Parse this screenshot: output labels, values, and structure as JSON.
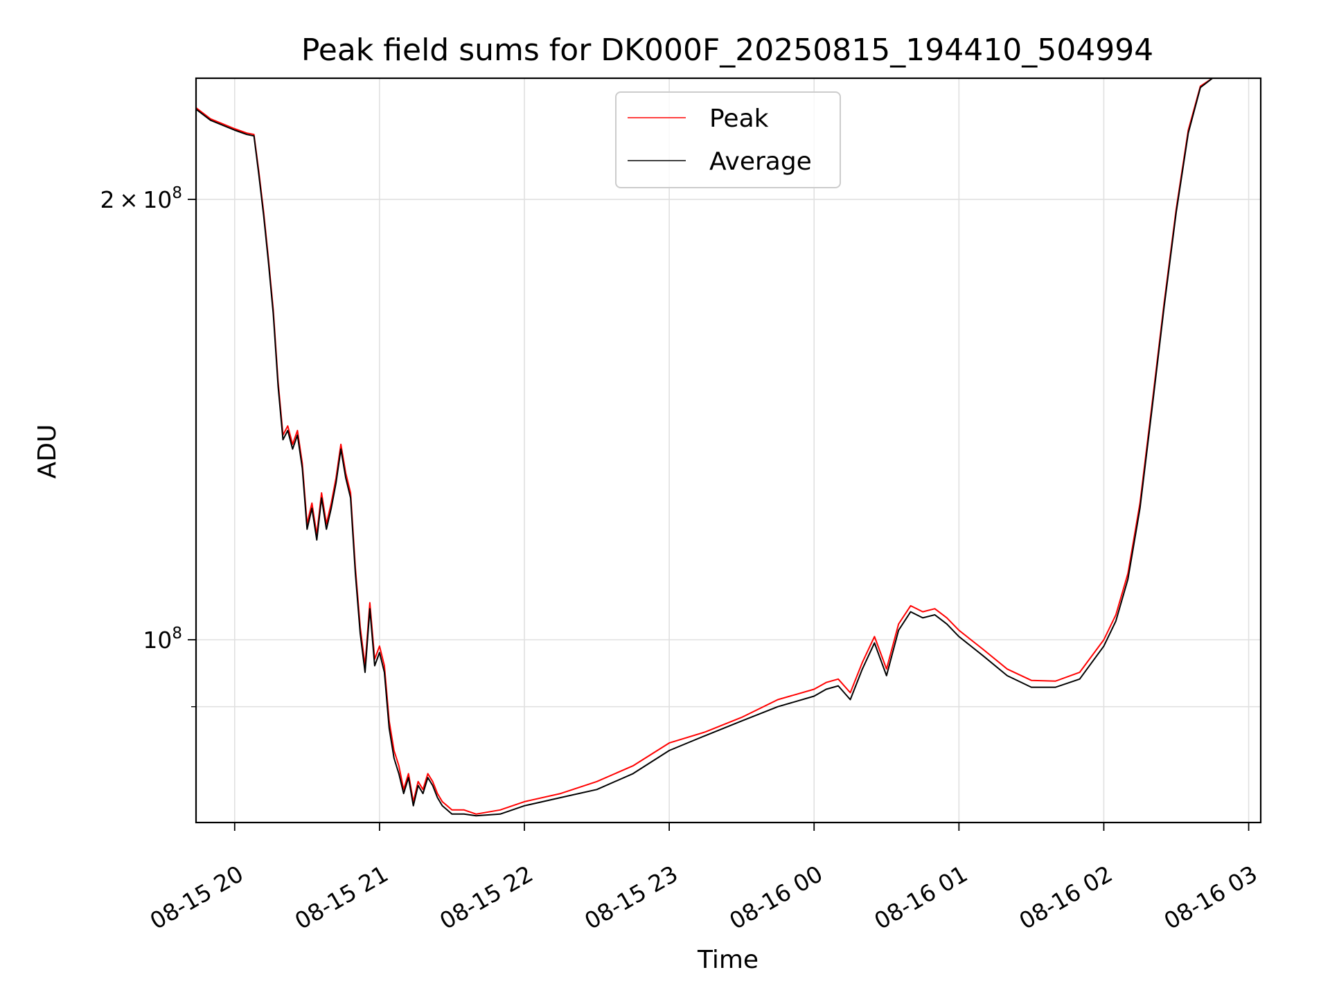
{
  "chart_data": {
    "type": "line",
    "title": "Peak field sums for DK000F_20250815_194410_504994",
    "xlabel": "Time",
    "ylabel": "ADU",
    "x_ticks": [
      "08-15 20",
      "08-15 21",
      "08-15 22",
      "08-15 23",
      "08-16 00",
      "08-16 01",
      "08-16 02",
      "08-16 03"
    ],
    "y_ticks": [
      {
        "value": 100000000,
        "mantissa": "",
        "exponent": "8"
      },
      {
        "value": 200000000,
        "mantissa": "2",
        "exponent": "8"
      }
    ],
    "yscale": "log",
    "xlim": [
      "2025-08-15 19:44",
      "2025-08-16 03:05"
    ],
    "ylim": [
      75000000,
      242000000
    ],
    "grid": true,
    "legend": {
      "position": "top-center"
    },
    "series": [
      {
        "name": "Peak",
        "color": "#ff0000",
        "x": [
          "2025-08-15 19:44",
          "2025-08-15 19:50",
          "2025-08-15 20:00",
          "2025-08-15 20:05",
          "2025-08-15 20:08",
          "2025-08-15 20:10",
          "2025-08-15 20:12",
          "2025-08-15 20:14",
          "2025-08-15 20:16",
          "2025-08-15 20:18",
          "2025-08-15 20:20",
          "2025-08-15 20:22",
          "2025-08-15 20:24",
          "2025-08-15 20:26",
          "2025-08-15 20:28",
          "2025-08-15 20:30",
          "2025-08-15 20:32",
          "2025-08-15 20:34",
          "2025-08-15 20:36",
          "2025-08-15 20:38",
          "2025-08-15 20:40",
          "2025-08-15 20:42",
          "2025-08-15 20:44",
          "2025-08-15 20:46",
          "2025-08-15 20:48",
          "2025-08-15 20:50",
          "2025-08-15 20:52",
          "2025-08-15 20:54",
          "2025-08-15 20:56",
          "2025-08-15 20:58",
          "2025-08-15 21:00",
          "2025-08-15 21:02",
          "2025-08-15 21:04",
          "2025-08-15 21:06",
          "2025-08-15 21:08",
          "2025-08-15 21:10",
          "2025-08-15 21:12",
          "2025-08-15 21:14",
          "2025-08-15 21:16",
          "2025-08-15 21:18",
          "2025-08-15 21:20",
          "2025-08-15 21:22",
          "2025-08-15 21:24",
          "2025-08-15 21:26",
          "2025-08-15 21:28",
          "2025-08-15 21:30",
          "2025-08-15 21:35",
          "2025-08-15 21:40",
          "2025-08-15 21:50",
          "2025-08-15 22:00",
          "2025-08-15 22:15",
          "2025-08-15 22:30",
          "2025-08-15 22:45",
          "2025-08-15 23:00",
          "2025-08-15 23:15",
          "2025-08-15 23:30",
          "2025-08-15 23:45",
          "2025-08-16 00:00",
          "2025-08-16 00:05",
          "2025-08-16 00:10",
          "2025-08-16 00:15",
          "2025-08-16 00:20",
          "2025-08-16 00:25",
          "2025-08-16 00:30",
          "2025-08-16 00:35",
          "2025-08-16 00:40",
          "2025-08-16 00:45",
          "2025-08-16 00:50",
          "2025-08-16 00:55",
          "2025-08-16 01:00",
          "2025-08-16 01:10",
          "2025-08-16 01:20",
          "2025-08-16 01:30",
          "2025-08-16 01:40",
          "2025-08-16 01:50",
          "2025-08-16 02:00",
          "2025-08-16 02:05",
          "2025-08-16 02:10",
          "2025-08-16 02:15",
          "2025-08-16 02:20",
          "2025-08-16 02:25",
          "2025-08-16 02:30",
          "2025-08-16 02:35",
          "2025-08-16 02:40",
          "2025-08-16 02:45",
          "2025-08-16 02:50",
          "2025-08-16 03:00",
          "2025-08-16 03:05"
        ],
        "y": [
          231000000,
          227000000,
          223500000,
          222000000,
          221500000,
          209000000,
          196000000,
          182000000,
          168000000,
          150000000,
          138000000,
          140000000,
          136000000,
          139000000,
          132000000,
          120000000,
          124000000,
          118000000,
          126000000,
          120000000,
          124000000,
          129000000,
          136000000,
          130000000,
          126000000,
          112000000,
          102000000,
          96000000,
          106000000,
          97000000,
          99000000,
          96000000,
          88000000,
          84000000,
          82000000,
          79000000,
          81000000,
          77500000,
          80000000,
          79000000,
          81000000,
          80000000,
          78500000,
          77500000,
          77000000,
          76500000,
          76500000,
          76000000,
          76500000,
          77500000,
          78500000,
          80000000,
          82000000,
          85000000,
          86500000,
          88500000,
          91000000,
          92500000,
          93500000,
          94000000,
          92000000,
          96500000,
          100500000,
          95500000,
          102500000,
          105500000,
          104500000,
          105000000,
          103500000,
          101500000,
          98500000,
          95500000,
          93800000,
          93700000,
          95000000,
          100000000,
          104000000,
          111000000,
          124000000,
          145000000,
          170000000,
          197000000,
          223000000,
          239000000,
          242000000,
          242000000,
          242000000,
          242000000
        ]
      },
      {
        "name": "Average",
        "color": "#000000",
        "x": [
          "2025-08-15 19:44",
          "2025-08-15 19:50",
          "2025-08-15 20:00",
          "2025-08-15 20:05",
          "2025-08-15 20:08",
          "2025-08-15 20:10",
          "2025-08-15 20:12",
          "2025-08-15 20:14",
          "2025-08-15 20:16",
          "2025-08-15 20:18",
          "2025-08-15 20:20",
          "2025-08-15 20:22",
          "2025-08-15 20:24",
          "2025-08-15 20:26",
          "2025-08-15 20:28",
          "2025-08-15 20:30",
          "2025-08-15 20:32",
          "2025-08-15 20:34",
          "2025-08-15 20:36",
          "2025-08-15 20:38",
          "2025-08-15 20:40",
          "2025-08-15 20:42",
          "2025-08-15 20:44",
          "2025-08-15 20:46",
          "2025-08-15 20:48",
          "2025-08-15 20:50",
          "2025-08-15 20:52",
          "2025-08-15 20:54",
          "2025-08-15 20:56",
          "2025-08-15 20:58",
          "2025-08-15 21:00",
          "2025-08-15 21:02",
          "2025-08-15 21:04",
          "2025-08-15 21:06",
          "2025-08-15 21:08",
          "2025-08-15 21:10",
          "2025-08-15 21:12",
          "2025-08-15 21:14",
          "2025-08-15 21:16",
          "2025-08-15 21:18",
          "2025-08-15 21:20",
          "2025-08-15 21:22",
          "2025-08-15 21:24",
          "2025-08-15 21:26",
          "2025-08-15 21:28",
          "2025-08-15 21:30",
          "2025-08-15 21:35",
          "2025-08-15 21:40",
          "2025-08-15 21:50",
          "2025-08-15 22:00",
          "2025-08-15 22:15",
          "2025-08-15 22:30",
          "2025-08-15 22:45",
          "2025-08-15 23:00",
          "2025-08-15 23:15",
          "2025-08-15 23:30",
          "2025-08-15 23:45",
          "2025-08-16 00:00",
          "2025-08-16 00:05",
          "2025-08-16 00:10",
          "2025-08-16 00:15",
          "2025-08-16 00:20",
          "2025-08-16 00:25",
          "2025-08-16 00:30",
          "2025-08-16 00:35",
          "2025-08-16 00:40",
          "2025-08-16 00:45",
          "2025-08-16 00:50",
          "2025-08-16 00:55",
          "2025-08-16 01:00",
          "2025-08-16 01:10",
          "2025-08-16 01:20",
          "2025-08-16 01:30",
          "2025-08-16 01:40",
          "2025-08-16 01:50",
          "2025-08-16 02:00",
          "2025-08-16 02:05",
          "2025-08-16 02:10",
          "2025-08-16 02:15",
          "2025-08-16 02:20",
          "2025-08-16 02:25",
          "2025-08-16 02:30",
          "2025-08-16 02:35",
          "2025-08-16 02:40",
          "2025-08-16 02:45",
          "2025-08-16 02:50",
          "2025-08-16 03:00",
          "2025-08-16 03:05"
        ],
        "y": [
          230500000,
          226500000,
          223000000,
          221500000,
          221000000,
          208000000,
          195000000,
          181000000,
          167000000,
          149000000,
          137000000,
          139000000,
          135000000,
          138000000,
          131000000,
          119000000,
          123000000,
          117000000,
          125000000,
          119000000,
          123000000,
          128000000,
          135000000,
          129000000,
          125000000,
          111000000,
          101000000,
          95000000,
          105000000,
          96000000,
          98000000,
          95000000,
          87000000,
          83000000,
          81000000,
          78500000,
          80500000,
          77000000,
          79500000,
          78500000,
          80500000,
          79500000,
          78000000,
          77000000,
          76500000,
          76000000,
          76000000,
          75800000,
          76000000,
          77000000,
          78000000,
          79000000,
          81000000,
          84000000,
          86000000,
          88000000,
          90000000,
          91500000,
          92500000,
          93000000,
          91000000,
          95500000,
          99500000,
          94500000,
          101500000,
          104500000,
          103500000,
          104000000,
          102500000,
          100500000,
          97500000,
          94500000,
          92800000,
          92800000,
          94000000,
          99000000,
          103000000,
          110000000,
          123000000,
          144000000,
          169000000,
          196000000,
          222000000,
          238500000,
          242000000,
          242000000,
          242000000,
          242000000
        ]
      }
    ]
  }
}
